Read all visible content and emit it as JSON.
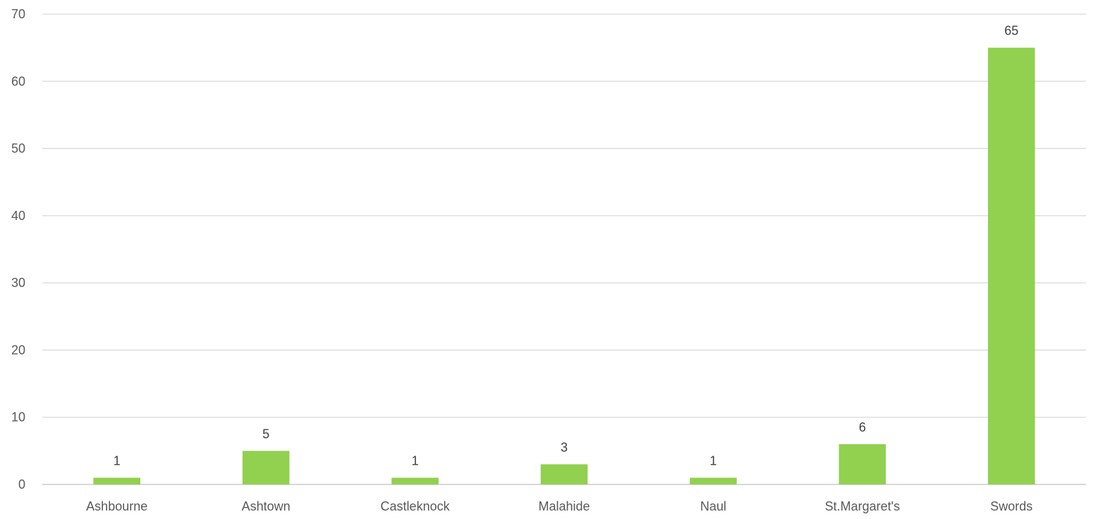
{
  "chart_data": {
    "type": "bar",
    "title": "",
    "xlabel": "",
    "ylabel": "",
    "categories": [
      "Ashbourne",
      "Ashtown",
      "Castleknock",
      "Malahide",
      "Naul",
      "St.Margaret's",
      "Swords"
    ],
    "values": [
      1,
      5,
      1,
      3,
      1,
      6,
      65
    ],
    "ylim": [
      0,
      70
    ],
    "yticks": [
      0,
      10,
      20,
      30,
      40,
      50,
      60,
      70
    ],
    "grid": true,
    "legend": "none",
    "data_labels": true,
    "bar_color": "#92d050"
  }
}
